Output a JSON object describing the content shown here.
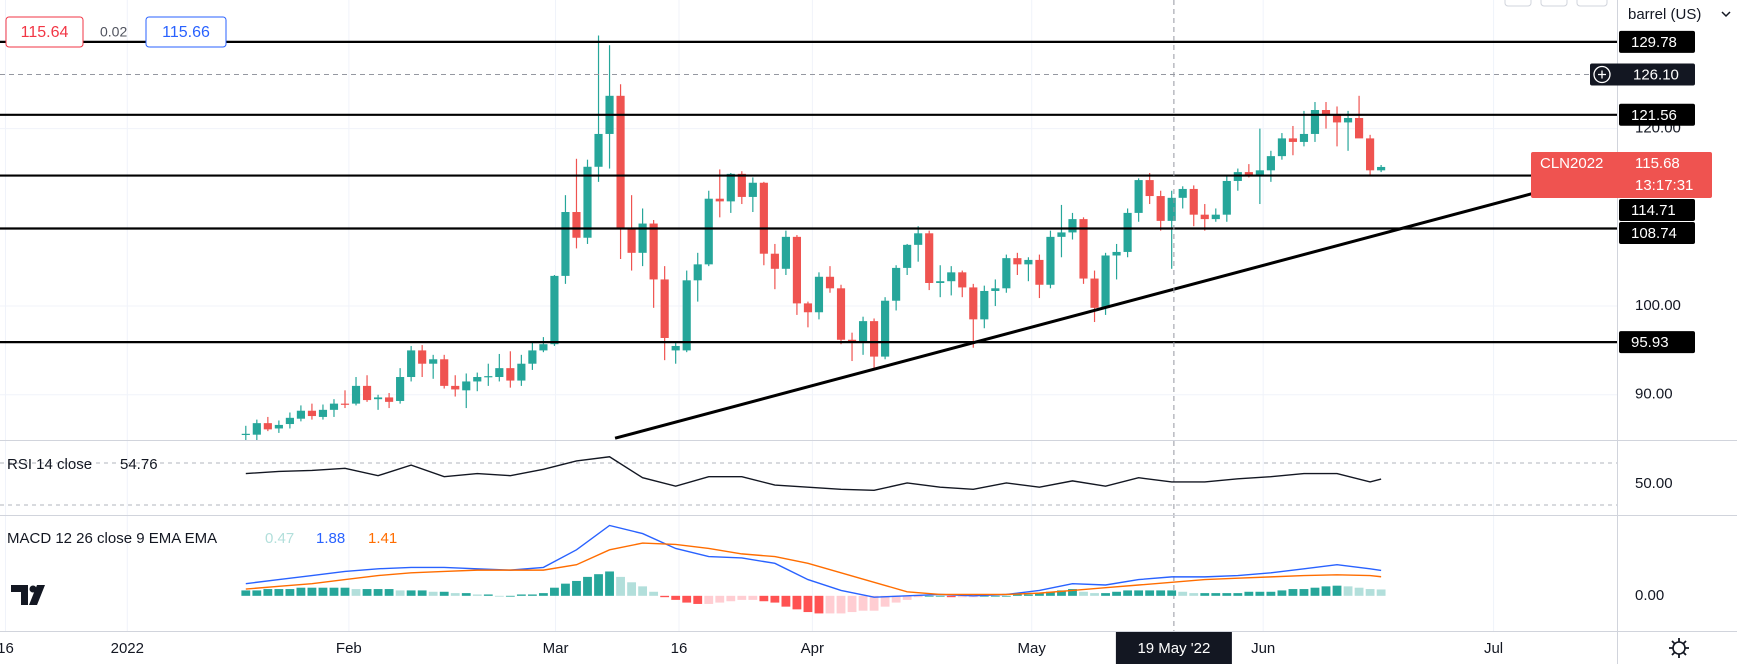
{
  "chart_data": [
    {
      "type": "candlestick",
      "ticker": "CLN2022",
      "countdown": "13:17:31",
      "unit": "barrel (US)",
      "header": {
        "bid": 115.64,
        "spread": 0.02,
        "ask": 115.66
      },
      "up_color": "#26a69a",
      "down_color": "#ef5350",
      "candles": [
        [
          85.6,
          86.5,
          84.8,
          85.6
        ],
        [
          85.5,
          87.2,
          84.9,
          86.8
        ],
        [
          86.8,
          87.5,
          85.9,
          86.1
        ],
        [
          86.2,
          87.1,
          85.7,
          86.6
        ],
        [
          86.7,
          88.0,
          86.2,
          87.4
        ],
        [
          87.3,
          88.8,
          87.0,
          88.2
        ],
        [
          88.2,
          89.0,
          87.2,
          87.6
        ],
        [
          87.5,
          88.9,
          87.2,
          88.3
        ],
        [
          88.3,
          89.5,
          87.5,
          89.0
        ],
        [
          89.0,
          90.5,
          88.5,
          88.9
        ],
        [
          89.0,
          92.0,
          88.8,
          91.0
        ],
        [
          91.0,
          92.2,
          89.2,
          89.4
        ],
        [
          89.5,
          90.0,
          88.3,
          89.7
        ],
        [
          89.7,
          90.2,
          88.5,
          89.2
        ],
        [
          89.3,
          93.0,
          89.0,
          92.0
        ],
        [
          92.0,
          95.5,
          91.5,
          95.0
        ],
        [
          95.0,
          95.6,
          92.0,
          93.5
        ],
        [
          93.5,
          94.5,
          91.8,
          94.0
        ],
        [
          94.0,
          94.5,
          90.7,
          91.0
        ],
        [
          91.0,
          92.2,
          89.8,
          90.6
        ],
        [
          90.5,
          92.4,
          88.5,
          91.5
        ],
        [
          91.5,
          92.5,
          90.4,
          92.0
        ],
        [
          92.1,
          93.5,
          91.0,
          92.1
        ],
        [
          92.0,
          94.6,
          91.5,
          93.0
        ],
        [
          93.0,
          94.9,
          90.8,
          91.6
        ],
        [
          91.6,
          94.5,
          91.0,
          93.5
        ],
        [
          93.5,
          96.0,
          92.8,
          95.0
        ],
        [
          95.0,
          96.5,
          94.8,
          95.7
        ],
        [
          95.7,
          103.5,
          95.5,
          103.4
        ],
        [
          103.4,
          112.5,
          102.5,
          110.6
        ],
        [
          110.6,
          116.6,
          106.5,
          107.7
        ],
        [
          107.7,
          116.5,
          107.0,
          115.7
        ],
        [
          115.7,
          130.5,
          114.0,
          119.4
        ],
        [
          119.4,
          129.4,
          115.5,
          123.7
        ],
        [
          123.7,
          125.0,
          105.3,
          108.7
        ],
        [
          108.7,
          112.5,
          104.0,
          106.0
        ],
        [
          106.0,
          111.0,
          104.5,
          109.3
        ],
        [
          109.3,
          109.7,
          99.8,
          103.0
        ],
        [
          103.0,
          104.5,
          93.9,
          96.4
        ],
        [
          95.0,
          96.0,
          93.5,
          95.5
        ],
        [
          95.0,
          104.0,
          94.8,
          102.9
        ],
        [
          102.9,
          106.0,
          100.5,
          104.7
        ],
        [
          104.7,
          113.0,
          104.5,
          112.1
        ],
        [
          112.1,
          115.4,
          110.0,
          111.8
        ],
        [
          111.8,
          115.0,
          110.5,
          114.9
        ],
        [
          114.9,
          115.2,
          111.5,
          112.3
        ],
        [
          112.3,
          114.5,
          110.6,
          113.9
        ],
        [
          113.9,
          114.0,
          104.6,
          105.9
        ],
        [
          105.9,
          107.0,
          101.9,
          104.2
        ],
        [
          104.2,
          108.5,
          103.5,
          107.8
        ],
        [
          107.8,
          108.0,
          99.0,
          100.3
        ],
        [
          100.3,
          100.5,
          97.6,
          99.3
        ],
        [
          99.3,
          103.8,
          98.5,
          103.3
        ],
        [
          103.3,
          104.5,
          101.5,
          102.0
        ],
        [
          102.0,
          102.4,
          95.7,
          96.2
        ],
        [
          96.2,
          97.0,
          93.8,
          96.0
        ],
        [
          96.0,
          98.8,
          94.5,
          98.3
        ],
        [
          98.3,
          98.6,
          92.9,
          94.3
        ],
        [
          94.3,
          101.0,
          94.0,
          100.6
        ],
        [
          100.6,
          104.6,
          99.5,
          104.3
        ],
        [
          104.3,
          107.0,
          103.5,
          106.9
        ],
        [
          106.9,
          109.0,
          105.0,
          108.2
        ],
        [
          108.2,
          108.5,
          101.8,
          102.6
        ],
        [
          102.6,
          104.6,
          101.0,
          102.8
        ],
        [
          102.8,
          104.5,
          101.2,
          103.8
        ],
        [
          103.8,
          104.0,
          101.0,
          102.1
        ],
        [
          102.1,
          102.5,
          95.3,
          98.5
        ],
        [
          98.5,
          102.3,
          97.5,
          101.7
        ],
        [
          101.7,
          103.0,
          100.0,
          102.0
        ],
        [
          102.0,
          105.8,
          101.5,
          105.4
        ],
        [
          105.4,
          106.0,
          103.5,
          104.7
        ],
        [
          104.7,
          105.5,
          102.8,
          105.2
        ],
        [
          105.2,
          105.8,
          100.9,
          102.4
        ],
        [
          102.4,
          108.5,
          102.0,
          107.8
        ],
        [
          107.8,
          111.4,
          105.5,
          108.3
        ],
        [
          108.3,
          110.5,
          107.5,
          109.8
        ],
        [
          109.8,
          110.0,
          102.5,
          103.1
        ],
        [
          103.1,
          104.0,
          98.2,
          99.8
        ],
        [
          99.8,
          106.0,
          99.0,
          105.7
        ],
        [
          105.7,
          107.0,
          103.0,
          106.1
        ],
        [
          106.1,
          111.0,
          105.5,
          110.5
        ],
        [
          110.5,
          114.4,
          109.5,
          114.2
        ],
        [
          114.2,
          115.0,
          111.5,
          112.4
        ],
        [
          112.4,
          113.0,
          108.5,
          109.6
        ],
        [
          109.6,
          113.0,
          104.2,
          112.2
        ],
        [
          112.2,
          113.5,
          111.0,
          113.2
        ],
        [
          113.2,
          113.6,
          109.0,
          110.3
        ],
        [
          110.3,
          111.5,
          108.5,
          109.8
        ],
        [
          109.8,
          111.0,
          109.5,
          110.3
        ],
        [
          110.3,
          114.8,
          109.5,
          114.1
        ],
        [
          114.1,
          115.5,
          113.0,
          115.1
        ],
        [
          115.1,
          116.0,
          114.5,
          114.7
        ],
        [
          114.7,
          120.0,
          111.5,
          115.3
        ],
        [
          115.3,
          117.5,
          114.0,
          116.9
        ],
        [
          116.9,
          119.5,
          116.5,
          118.9
        ],
        [
          118.9,
          120.3,
          117.0,
          118.5
        ],
        [
          118.5,
          122.0,
          118.0,
          119.4
        ],
        [
          119.4,
          123.0,
          118.5,
          122.1
        ],
        [
          122.1,
          123.0,
          120.0,
          121.5
        ],
        [
          121.5,
          122.5,
          118.0,
          120.7
        ],
        [
          120.7,
          122.0,
          117.5,
          121.2
        ],
        [
          121.2,
          123.7,
          119.3,
          118.9
        ],
        [
          118.9,
          119.3,
          114.8,
          115.3
        ],
        [
          115.3,
          115.9,
          115.1,
          115.68
        ]
      ],
      "xlim": [
        -22.3,
        124.4
      ],
      "ylim": [
        84.9,
        134.5
      ],
      "xticks": [
        {
          "value": -21.8,
          "label": "16"
        },
        {
          "value": -10.75,
          "label": "2022"
        },
        {
          "value": 9.35,
          "label": "Feb"
        },
        {
          "value": 28.1,
          "label": "Mar"
        },
        {
          "value": 39.3,
          "label": "16"
        },
        {
          "value": 51.4,
          "label": "Apr"
        },
        {
          "value": 71.3,
          "label": "May"
        },
        {
          "value": 92.3,
          "label": "Jun"
        },
        {
          "value": 113.2,
          "label": "Jul"
        }
      ],
      "yticks": [
        {
          "value": 90,
          "label": "90.00"
        },
        {
          "value": 100,
          "label": "100.00"
        },
        {
          "value": 120,
          "label": "120.00"
        }
      ],
      "levels": [
        129.78,
        121.56,
        114.71,
        108.74,
        95.93
      ],
      "level_color": "#000000",
      "crosshair": {
        "x": 84.2,
        "x_label": "19 May '22",
        "y": {
          "value": 126.1,
          "label": "126.10"
        }
      },
      "trendline": {
        "x": [
          33.5,
          117.4
        ],
        "y": [
          85.1,
          112.9
        ]
      },
      "grid": true
    },
    {
      "type": "line",
      "title": "RSI 14 close",
      "color": "#131722",
      "x": [
        0,
        3,
        6,
        9,
        12,
        15,
        18,
        21,
        24,
        27,
        30,
        33,
        36,
        39,
        42,
        45,
        48,
        51,
        54,
        57,
        60,
        63,
        66,
        69,
        72,
        75,
        78,
        81,
        84,
        87,
        90,
        93,
        96,
        99,
        102,
        103
      ],
      "values": [
        60,
        62,
        63,
        65,
        58,
        68,
        57,
        60,
        58,
        64,
        72,
        76,
        56,
        48,
        57,
        57,
        49,
        47,
        45,
        44,
        51,
        47,
        45,
        51,
        47,
        53,
        48,
        56,
        52,
        52,
        55,
        57,
        60,
        60,
        52,
        54.76
      ],
      "ylim": [
        20.5,
        91
      ],
      "yticks": [
        {
          "value": 50,
          "label": "50.00"
        }
      ],
      "bands": [
        70,
        30
      ]
    },
    {
      "type": "macd",
      "title": "MACD 12 26 close 9 EMA EMA",
      "histogram": {
        "colors": [
          "#26a69a",
          "#b2dfdb",
          "#ff5252",
          "#ffcdd2"
        ],
        "values": [
          0.4,
          0.4,
          0.5,
          0.5,
          0.5,
          0.6,
          0.6,
          0.6,
          0.6,
          0.6,
          0.5,
          0.5,
          0.5,
          0.5,
          0.4,
          0.4,
          0.4,
          0.3,
          0.3,
          0.2,
          0.2,
          0.1,
          0.1,
          0.0,
          0.0,
          0.1,
          0.1,
          0.2,
          0.6,
          0.9,
          1.1,
          1.4,
          1.6,
          1.8,
          1.4,
          1.0,
          0.7,
          0.3,
          -0.1,
          -0.3,
          -0.5,
          -0.6,
          -0.6,
          -0.5,
          -0.4,
          -0.3,
          -0.3,
          -0.4,
          -0.5,
          -0.8,
          -1.0,
          -1.2,
          -1.3,
          -1.3,
          -1.3,
          -1.2,
          -1.1,
          -1.1,
          -0.8,
          -0.5,
          -0.3,
          -0.1,
          0.0,
          0.0,
          -0.1,
          -0.1,
          -0.1,
          0.0,
          0.0,
          0.0,
          0.1,
          0.1,
          0.2,
          0.3,
          0.4,
          0.5,
          0.3,
          0.2,
          0.2,
          0.3,
          0.4,
          0.4,
          0.4,
          0.4,
          0.4,
          0.3,
          0.2,
          0.2,
          0.2,
          0.2,
          0.2,
          0.3,
          0.3,
          0.3,
          0.4,
          0.5,
          0.5,
          0.6,
          0.7,
          0.75,
          0.7,
          0.6,
          0.5,
          0.47
        ]
      },
      "series": [
        {
          "color": "#2962ff",
          "x": [
            0,
            3,
            6,
            9,
            12,
            15,
            18,
            21,
            24,
            27,
            30,
            33,
            36,
            39,
            42,
            45,
            48,
            51,
            54,
            57,
            60,
            63,
            66,
            69,
            72,
            75,
            78,
            81,
            84,
            87,
            90,
            93,
            96,
            99,
            102,
            103
          ],
          "values": [
            0.9,
            1.2,
            1.5,
            1.8,
            2.0,
            2.1,
            2.1,
            2.0,
            1.9,
            2.1,
            3.4,
            5.2,
            4.6,
            3.5,
            2.9,
            2.8,
            2.4,
            1.2,
            0.4,
            -0.1,
            0.0,
            0.1,
            0.0,
            0.1,
            0.4,
            0.9,
            0.8,
            1.2,
            1.4,
            1.4,
            1.5,
            1.7,
            2.0,
            2.3,
            2.0,
            1.88
          ]
        },
        {
          "color": "#ff6d00",
          "x": [
            0,
            3,
            6,
            9,
            12,
            15,
            18,
            21,
            24,
            27,
            30,
            33,
            36,
            39,
            42,
            45,
            48,
            51,
            54,
            57,
            60,
            63,
            66,
            69,
            72,
            75,
            78,
            81,
            84,
            87,
            90,
            93,
            96,
            99,
            102,
            103
          ],
          "values": [
            0.5,
            0.7,
            0.9,
            1.2,
            1.5,
            1.7,
            1.8,
            1.9,
            1.9,
            1.9,
            2.3,
            3.4,
            3.9,
            3.8,
            3.5,
            3.1,
            2.9,
            2.4,
            1.7,
            1.0,
            0.3,
            0.1,
            0.1,
            0.1,
            0.2,
            0.4,
            0.6,
            0.8,
            1.0,
            1.2,
            1.3,
            1.4,
            1.5,
            1.55,
            1.5,
            1.41
          ]
        }
      ],
      "ylim": [
        -2.6,
        5.9
      ],
      "yticks": [
        {
          "value": 0,
          "label": "0.00"
        }
      ]
    }
  ]
}
